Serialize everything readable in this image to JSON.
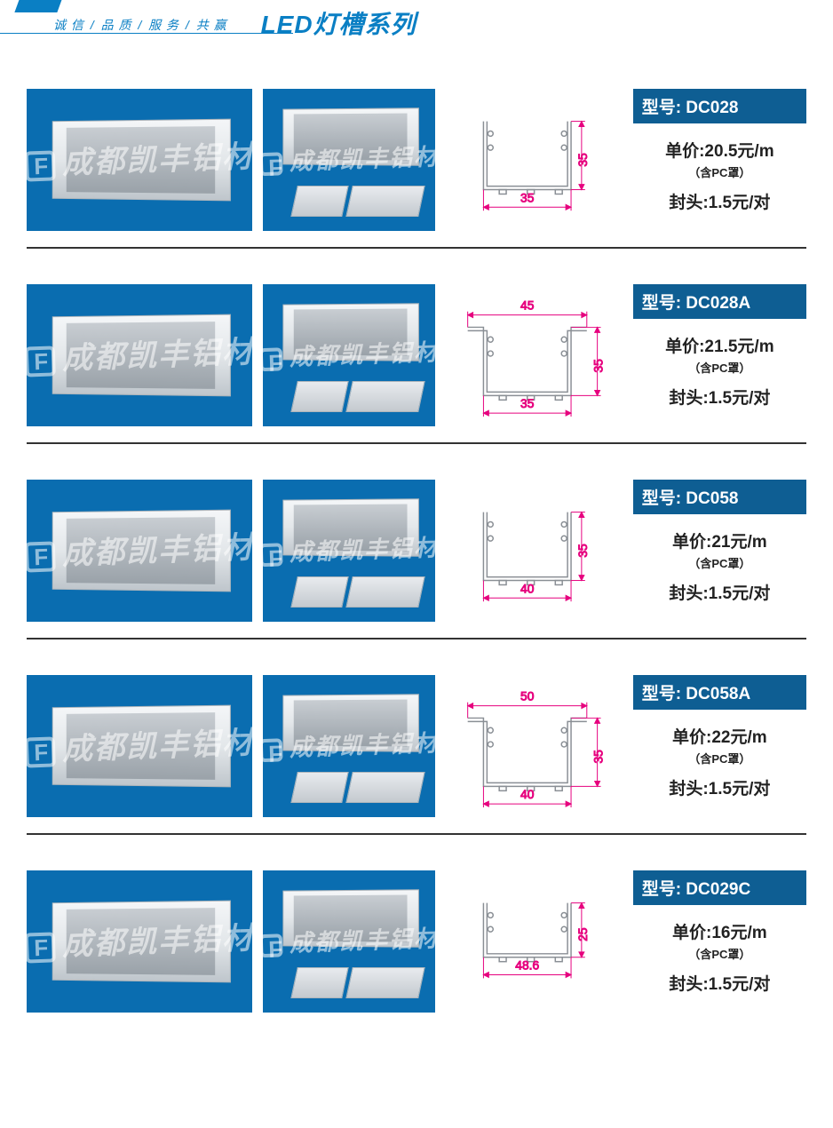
{
  "header": {
    "tagline_parts": [
      "诚 信",
      "品 质",
      "服 务",
      "共 赢"
    ],
    "tagline_separator": "/",
    "title": "LED灯槽系列"
  },
  "colors": {
    "brand_blue": "#0a7fc4",
    "badge_blue": "#0e5e93",
    "photo_bg": "#0a6db0",
    "dim_pink": "#e6007e",
    "profile_stroke": "#8a8f95",
    "text": "#222222",
    "divider": "#333333",
    "watermark": "rgba(255,255,255,0.55)"
  },
  "common": {
    "watermark_text": "成都凯丰铝材",
    "model_label_prefix": "型号:",
    "price_prefix": "单价:",
    "price_unit": "元/m",
    "pc_note": "（含PC罩）",
    "endcap_prefix": "封头:",
    "endcap_unit": "元/对"
  },
  "diagram_style": {
    "dim_fontsize": 14,
    "dim_color": "#e6007e",
    "profile_stroke_width": 1.5
  },
  "products": [
    {
      "model": "DC028",
      "price": "20.5",
      "endcap_price": "1.5",
      "has_flange": false,
      "dimensions": {
        "width": "35",
        "height": "35",
        "top_width": null
      }
    },
    {
      "model": "DC028A",
      "price": "21.5",
      "endcap_price": "1.5",
      "has_flange": true,
      "dimensions": {
        "width": "35",
        "height": "35",
        "top_width": "45"
      }
    },
    {
      "model": "DC058",
      "price": "21",
      "endcap_price": "1.5",
      "has_flange": false,
      "dimensions": {
        "width": "40",
        "height": "35",
        "top_width": null
      }
    },
    {
      "model": "DC058A",
      "price": "22",
      "endcap_price": "1.5",
      "has_flange": true,
      "dimensions": {
        "width": "40",
        "height": "35",
        "top_width": "50"
      }
    },
    {
      "model": "DC029C",
      "price": "16",
      "endcap_price": "1.5",
      "has_flange": false,
      "dimensions": {
        "width": "48.6",
        "height": "25",
        "top_width": null
      }
    }
  ]
}
